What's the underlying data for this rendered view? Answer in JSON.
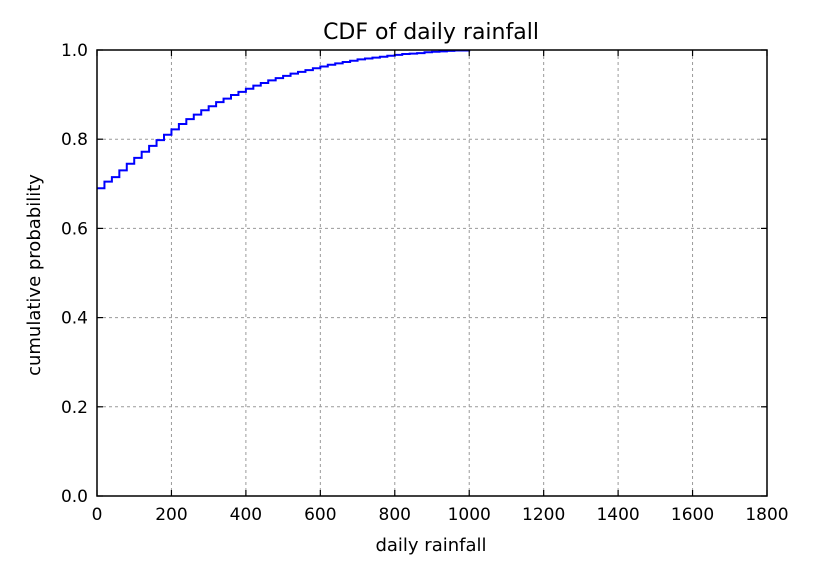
{
  "chart_data": {
    "type": "line",
    "step": true,
    "title": "CDF of daily rainfall",
    "xlabel": "daily rainfall",
    "ylabel": "cumulative probability",
    "xlim": [
      0,
      1800
    ],
    "ylim": [
      0.0,
      1.0
    ],
    "xticks": [
      0,
      200,
      400,
      600,
      800,
      1000,
      1200,
      1400,
      1600,
      1800
    ],
    "xtick_labels": [
      "0",
      "200",
      "400",
      "600",
      "800",
      "1000",
      "1200",
      "1400",
      "1600",
      "1800"
    ],
    "yticks": [
      0.0,
      0.2,
      0.4,
      0.6,
      0.8,
      1.0
    ],
    "ytick_labels": [
      "0.0",
      "0.2",
      "0.4",
      "0.6",
      "0.8",
      "1.0"
    ],
    "grid": true,
    "line_color": "#0000ff",
    "series": [
      {
        "x": [
          0,
          20,
          40,
          60,
          80,
          100,
          120,
          140,
          160,
          180,
          200,
          220,
          240,
          260,
          280,
          300,
          320,
          340,
          360,
          380,
          400,
          420,
          440,
          460,
          480,
          500,
          520,
          540,
          560,
          580,
          600,
          620,
          640,
          660,
          680,
          700,
          720,
          740,
          760,
          780,
          800,
          820,
          840,
          860,
          880,
          900,
          920,
          940,
          960,
          980,
          1000
        ],
        "y": [
          0.69,
          0.705,
          0.715,
          0.73,
          0.745,
          0.758,
          0.772,
          0.785,
          0.798,
          0.81,
          0.822,
          0.834,
          0.845,
          0.855,
          0.865,
          0.874,
          0.883,
          0.891,
          0.899,
          0.906,
          0.913,
          0.92,
          0.926,
          0.932,
          0.937,
          0.942,
          0.947,
          0.951,
          0.955,
          0.959,
          0.963,
          0.967,
          0.97,
          0.973,
          0.976,
          0.979,
          0.981,
          0.983,
          0.985,
          0.987,
          0.989,
          0.991,
          0.992,
          0.993,
          0.995,
          0.996,
          0.997,
          0.998,
          0.999,
          0.999,
          1.0
        ]
      }
    ]
  }
}
